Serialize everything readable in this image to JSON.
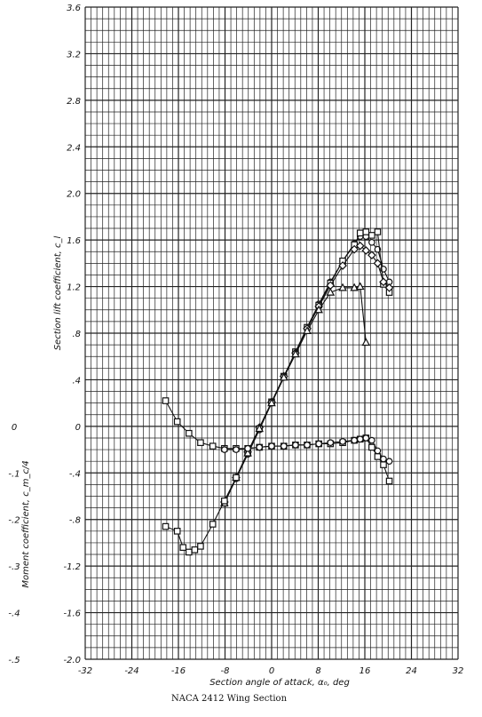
{
  "chart_data": {
    "type": "line",
    "title": "NACA 2412 Wing Section",
    "xlabel": "Section angle of attack, α₀, deg",
    "ylabel_lift": "Section lift coefficient, c_l",
    "ylabel_moment": "Moment coefficient, c_m_c/4",
    "xlim": [
      -32,
      32
    ],
    "ylim": [
      -2.0,
      3.6
    ],
    "x_ticks": [
      "-32",
      "-24",
      "-16",
      "-8",
      "0",
      "8",
      "16",
      "24",
      "32"
    ],
    "lift_ticks": [
      "-2.0",
      "-1.6",
      "-1.2",
      "-.8",
      "-.4",
      "0",
      ".4",
      ".8",
      "1.2",
      "1.6",
      "2.0",
      "2.4",
      "2.8",
      "3.2",
      "3.6"
    ],
    "moment_ticks": [
      {
        "label": "0",
        "at": 0
      },
      {
        "label": "-.1",
        "at": -0.4
      },
      {
        "label": "-.2",
        "at": -0.8
      },
      {
        "label": "-.3",
        "at": -1.2
      },
      {
        "label": "-.4",
        "at": -1.6
      },
      {
        "label": "-.5",
        "at": -2.0
      }
    ],
    "grid": true,
    "series": [
      {
        "marker": "circle",
        "kind": "lift",
        "x": [
          -8.1,
          -6.1,
          -4.1,
          -2.1,
          0.0,
          2.1,
          4.1,
          6.1,
          8.1,
          10.1,
          12.2,
          14.2,
          15.2,
          16.2,
          17.2,
          18.2,
          19.2,
          20.2
        ],
        "y": [
          -0.66,
          -0.45,
          -0.24,
          -0.03,
          0.2,
          0.42,
          0.63,
          0.85,
          1.05,
          1.24,
          1.42,
          1.57,
          1.63,
          1.63,
          1.58,
          1.52,
          1.35,
          1.24
        ]
      },
      {
        "marker": "square",
        "kind": "lift",
        "x": [
          -8.1,
          -6.1,
          -4.1,
          -2.1,
          0.0,
          2.1,
          4.1,
          6.1,
          8.1,
          10.1,
          12.2,
          14.2,
          15.2,
          16.2,
          17.2,
          18.2,
          19.2,
          20.2
        ],
        "y": [
          -0.66,
          -0.44,
          -0.23,
          -0.02,
          0.21,
          0.43,
          0.64,
          0.85,
          1.04,
          1.23,
          1.42,
          1.56,
          1.66,
          1.67,
          1.64,
          1.67,
          1.22,
          1.15
        ]
      },
      {
        "marker": "diamond",
        "kind": "lift",
        "x": [
          -8.1,
          -6.1,
          -4.1,
          -2.1,
          0.0,
          2.1,
          4.1,
          6.1,
          8.1,
          10.1,
          12.2,
          14.2,
          15.2,
          16.2,
          17.2,
          18.2,
          19.2,
          20.2
        ],
        "y": [
          -0.65,
          -0.44,
          -0.22,
          -0.01,
          0.21,
          0.43,
          0.63,
          0.84,
          1.03,
          1.21,
          1.38,
          1.52,
          1.55,
          1.51,
          1.47,
          1.4,
          1.24,
          1.19
        ]
      },
      {
        "marker": "triangle",
        "kind": "lift",
        "x": [
          -8.1,
          -6.1,
          -4.1,
          -2.1,
          0.0,
          2.1,
          4.1,
          6.1,
          8.1,
          10.1,
          12.2,
          14.2,
          15.2,
          16.2
        ],
        "y": [
          -0.66,
          -0.44,
          -0.23,
          -0.02,
          0.2,
          0.42,
          0.62,
          0.82,
          1.0,
          1.15,
          1.19,
          1.19,
          1.2,
          0.72
        ]
      },
      {
        "marker": "square",
        "kind": "moment",
        "x": [
          -18.2,
          -16.2,
          -14.2,
          -12.2,
          -10.1,
          -8.1,
          -6.1,
          -4.1,
          -2.1,
          0.0,
          2.1,
          4.1,
          6.1,
          8.1,
          10.1,
          12.2,
          14.2,
          15.2,
          16.2,
          17.2,
          18.2,
          19.2,
          20.2
        ],
        "y": [
          0.22,
          0.04,
          -0.06,
          -0.14,
          -0.17,
          -0.19,
          -0.19,
          -0.19,
          -0.18,
          -0.17,
          -0.17,
          -0.16,
          -0.16,
          -0.15,
          -0.15,
          -0.14,
          -0.12,
          -0.11,
          -0.1,
          -0.18,
          -0.26,
          -0.33,
          -0.47
        ]
      },
      {
        "marker": "circle",
        "kind": "moment",
        "x": [
          -8.1,
          -6.1,
          -4.1,
          -2.1,
          0.0,
          2.1,
          4.1,
          6.1,
          8.1,
          10.1,
          12.2,
          14.2,
          15.2,
          16.2,
          17.2,
          18.2,
          19.2,
          20.2
        ],
        "y": [
          -0.2,
          -0.2,
          -0.19,
          -0.18,
          -0.17,
          -0.17,
          -0.16,
          -0.16,
          -0.15,
          -0.14,
          -0.13,
          -0.12,
          -0.11,
          -0.1,
          -0.12,
          -0.21,
          -0.28,
          -0.3
        ]
      },
      {
        "marker": "square",
        "kind": "lift",
        "x": [
          -18.2,
          -16.2,
          -15.2,
          -14.2,
          -13.2,
          -12.2,
          -10.1,
          -8.1,
          -6.1
        ],
        "y": [
          -0.86,
          -0.9,
          -1.04,
          -1.08,
          -1.06,
          -1.03,
          -0.84,
          -0.64,
          -0.44
        ]
      }
    ]
  },
  "caption": "NACA 2412 Wing Section"
}
